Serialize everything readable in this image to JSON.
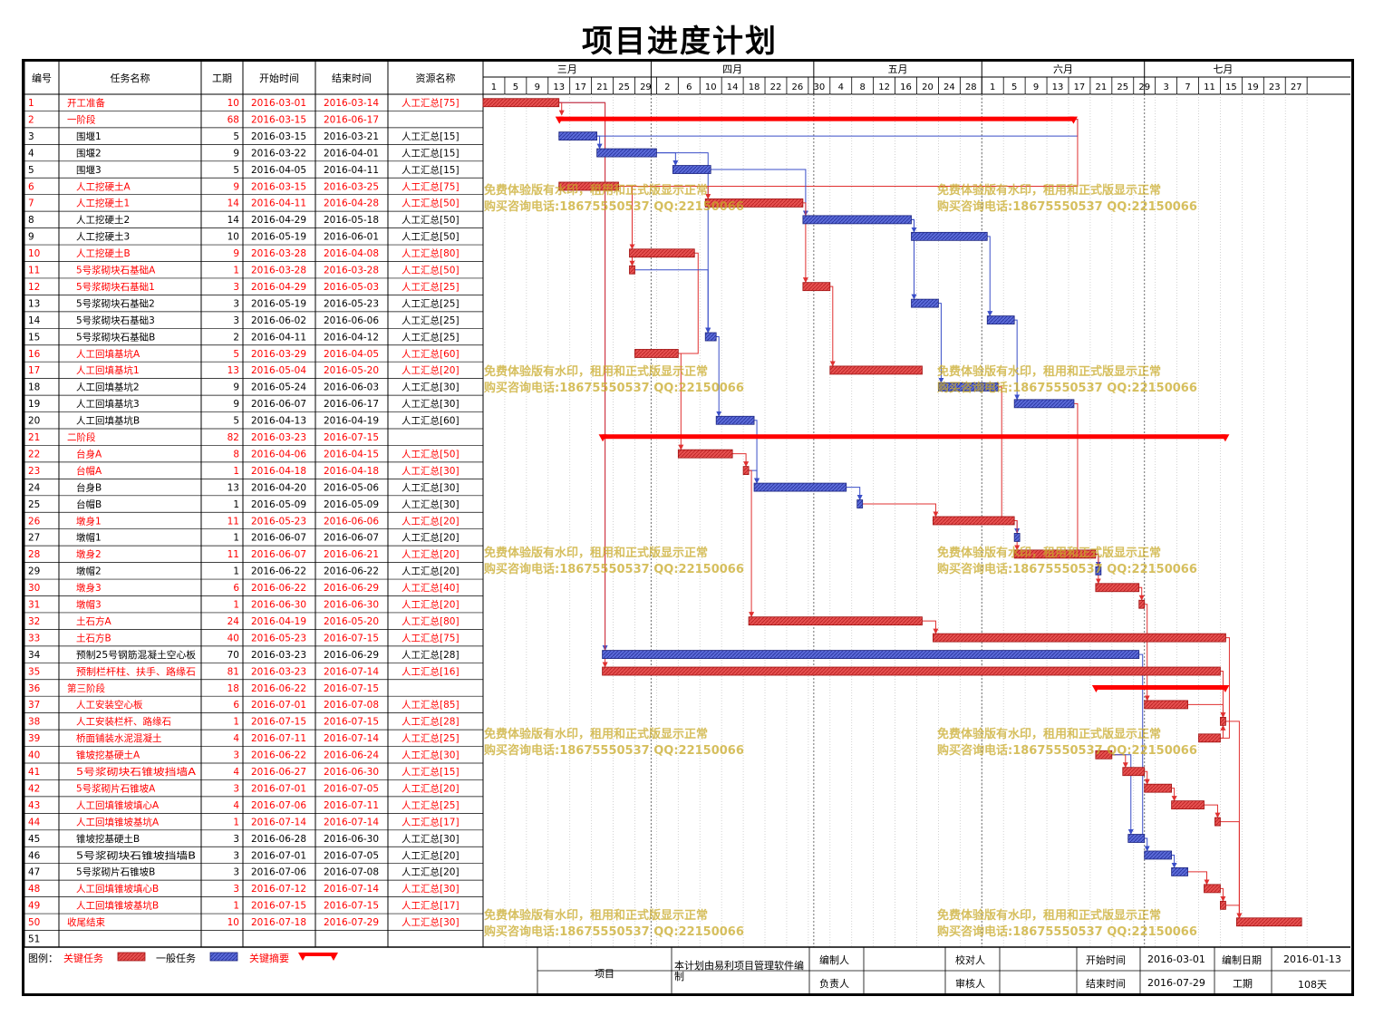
{
  "title": "项目进度计划",
  "headers": [
    "编号",
    "任务名称",
    "工期",
    "开始时间",
    "结束时间",
    "资源名称"
  ],
  "months": [
    "三月",
    "四月",
    "五月",
    "六月",
    "七月"
  ],
  "day_ticks": [
    "1",
    "5",
    "9",
    "13",
    "17",
    "21",
    "25",
    "29",
    "2",
    "6",
    "10",
    "14",
    "18",
    "22",
    "26",
    "30",
    "4",
    "8",
    "12",
    "16",
    "20",
    "24",
    "28",
    "1",
    "5",
    "9",
    "13",
    "17",
    "21",
    "25",
    "29",
    "3",
    "7",
    "11",
    "15",
    "19",
    "23",
    "27"
  ],
  "colors": {
    "critical": "#e03030",
    "normal": "#3a4ec8",
    "summary": "#ff0000",
    "critical_text": "#ff0000",
    "normal_text": "#000000"
  },
  "watermark": [
    "免费体验版有水印，租用和正式版显示正常",
    "购买咨询电话:18675550537 QQ:22150066"
  ],
  "legend": {
    "label": "图例：",
    "critical": "关键任务",
    "normal": "一般任务",
    "summary": "关键摘要"
  },
  "footer": {
    "project_label": "项目",
    "software_note": "本计划由易利项目管理软件编制",
    "editor_label": "编制人",
    "checker_label": "校对人",
    "start_label": "开始时间",
    "start_value": "2016-03-01",
    "date_label": "编制日期",
    "date_value": "2016-01-13",
    "owner_label": "负责人",
    "reviewer_label": "审核人",
    "end_label": "结束时间",
    "end_value": "2016-07-29",
    "duration_label": "工期",
    "duration_value": "108天"
  },
  "chart_data": {
    "type": "gantt",
    "title": "项目进度计划",
    "x_range": [
      "2016-03-01",
      "2016-07-29"
    ],
    "tasks": [
      {
        "id": "1",
        "name": "开工准备",
        "level": 0,
        "dur": "10",
        "start": "2016-03-01",
        "end": "2016-03-14",
        "res": "人工汇总[75]",
        "kind": "critical"
      },
      {
        "id": "2",
        "name": "一阶段",
        "level": 0,
        "dur": "68",
        "start": "2016-03-15",
        "end": "2016-06-17",
        "res": "",
        "kind": "summary"
      },
      {
        "id": "3",
        "name": "围堰1",
        "level": 1,
        "dur": "5",
        "start": "2016-03-15",
        "end": "2016-03-21",
        "res": "人工汇总[15]",
        "kind": "normal"
      },
      {
        "id": "4",
        "name": "围堰2",
        "level": 1,
        "dur": "9",
        "start": "2016-03-22",
        "end": "2016-04-01",
        "res": "人工汇总[15]",
        "kind": "normal"
      },
      {
        "id": "5",
        "name": "围堰3",
        "level": 1,
        "dur": "5",
        "start": "2016-04-05",
        "end": "2016-04-11",
        "res": "人工汇总[15]",
        "kind": "normal"
      },
      {
        "id": "6",
        "name": "人工挖硬土A",
        "level": 1,
        "dur": "9",
        "start": "2016-03-15",
        "end": "2016-03-25",
        "res": "人工汇总[75]",
        "kind": "critical"
      },
      {
        "id": "7",
        "name": "人工挖硬土1",
        "level": 1,
        "dur": "14",
        "start": "2016-04-11",
        "end": "2016-04-28",
        "res": "人工汇总[50]",
        "kind": "critical"
      },
      {
        "id": "8",
        "name": "人工挖硬土2",
        "level": 1,
        "dur": "14",
        "start": "2016-04-29",
        "end": "2016-05-18",
        "res": "人工汇总[50]",
        "kind": "normal"
      },
      {
        "id": "9",
        "name": "人工挖硬土3",
        "level": 1,
        "dur": "10",
        "start": "2016-05-19",
        "end": "2016-06-01",
        "res": "人工汇总[50]",
        "kind": "normal"
      },
      {
        "id": "10",
        "name": "人工挖硬土B",
        "level": 1,
        "dur": "9",
        "start": "2016-03-28",
        "end": "2016-04-08",
        "res": "人工汇总[80]",
        "kind": "critical"
      },
      {
        "id": "11",
        "name": "5号浆砌块石基础A",
        "level": 1,
        "dur": "1",
        "start": "2016-03-28",
        "end": "2016-03-28",
        "res": "人工汇总[50]",
        "kind": "critical"
      },
      {
        "id": "12",
        "name": "5号浆砌块石基础1",
        "level": 1,
        "dur": "3",
        "start": "2016-04-29",
        "end": "2016-05-03",
        "res": "人工汇总[25]",
        "kind": "critical"
      },
      {
        "id": "13",
        "name": "5号浆砌块石基础2",
        "level": 1,
        "dur": "3",
        "start": "2016-05-19",
        "end": "2016-05-23",
        "res": "人工汇总[25]",
        "kind": "normal"
      },
      {
        "id": "14",
        "name": "5号浆砌块石基础3",
        "level": 1,
        "dur": "3",
        "start": "2016-06-02",
        "end": "2016-06-06",
        "res": "人工汇总[25]",
        "kind": "normal"
      },
      {
        "id": "15",
        "name": "5号浆砌块石基础B",
        "level": 1,
        "dur": "2",
        "start": "2016-04-11",
        "end": "2016-04-12",
        "res": "人工汇总[25]",
        "kind": "normal"
      },
      {
        "id": "16",
        "name": "人工回填基坑A",
        "level": 1,
        "dur": "5",
        "start": "2016-03-29",
        "end": "2016-04-05",
        "res": "人工汇总[60]",
        "kind": "critical"
      },
      {
        "id": "17",
        "name": "人工回填基坑1",
        "level": 1,
        "dur": "13",
        "start": "2016-05-04",
        "end": "2016-05-20",
        "res": "人工汇总[20]",
        "kind": "critical"
      },
      {
        "id": "18",
        "name": "人工回填基坑2",
        "level": 1,
        "dur": "9",
        "start": "2016-05-24",
        "end": "2016-06-03",
        "res": "人工汇总[30]",
        "kind": "normal"
      },
      {
        "id": "19",
        "name": "人工回填基坑3",
        "level": 1,
        "dur": "9",
        "start": "2016-06-07",
        "end": "2016-06-17",
        "res": "人工汇总[30]",
        "kind": "normal"
      },
      {
        "id": "20",
        "name": "人工回填基坑B",
        "level": 1,
        "dur": "5",
        "start": "2016-04-13",
        "end": "2016-04-19",
        "res": "人工汇总[60]",
        "kind": "normal"
      },
      {
        "id": "21",
        "name": "二阶段",
        "level": 0,
        "dur": "82",
        "start": "2016-03-23",
        "end": "2016-07-15",
        "res": "",
        "kind": "summary"
      },
      {
        "id": "22",
        "name": "台身A",
        "level": 1,
        "dur": "8",
        "start": "2016-04-06",
        "end": "2016-04-15",
        "res": "人工汇总[50]",
        "kind": "critical"
      },
      {
        "id": "23",
        "name": "台帽A",
        "level": 1,
        "dur": "1",
        "start": "2016-04-18",
        "end": "2016-04-18",
        "res": "人工汇总[30]",
        "kind": "critical"
      },
      {
        "id": "24",
        "name": "台身B",
        "level": 1,
        "dur": "13",
        "start": "2016-04-20",
        "end": "2016-05-06",
        "res": "人工汇总[30]",
        "kind": "normal"
      },
      {
        "id": "25",
        "name": "台帽B",
        "level": 1,
        "dur": "1",
        "start": "2016-05-09",
        "end": "2016-05-09",
        "res": "人工汇总[30]",
        "kind": "normal"
      },
      {
        "id": "26",
        "name": "墩身1",
        "level": 1,
        "dur": "11",
        "start": "2016-05-23",
        "end": "2016-06-06",
        "res": "人工汇总[20]",
        "kind": "critical"
      },
      {
        "id": "27",
        "name": "墩帽1",
        "level": 1,
        "dur": "1",
        "start": "2016-06-07",
        "end": "2016-06-07",
        "res": "人工汇总[20]",
        "kind": "normal"
      },
      {
        "id": "28",
        "name": "墩身2",
        "level": 1,
        "dur": "11",
        "start": "2016-06-07",
        "end": "2016-06-21",
        "res": "人工汇总[20]",
        "kind": "critical"
      },
      {
        "id": "29",
        "name": "墩帽2",
        "level": 1,
        "dur": "1",
        "start": "2016-06-22",
        "end": "2016-06-22",
        "res": "人工汇总[20]",
        "kind": "normal"
      },
      {
        "id": "30",
        "name": "墩身3",
        "level": 1,
        "dur": "6",
        "start": "2016-06-22",
        "end": "2016-06-29",
        "res": "人工汇总[40]",
        "kind": "critical"
      },
      {
        "id": "31",
        "name": "墩帽3",
        "level": 1,
        "dur": "1",
        "start": "2016-06-30",
        "end": "2016-06-30",
        "res": "人工汇总[20]",
        "kind": "critical"
      },
      {
        "id": "32",
        "name": "土石方A",
        "level": 1,
        "dur": "24",
        "start": "2016-04-19",
        "end": "2016-05-20",
        "res": "人工汇总[80]",
        "kind": "critical"
      },
      {
        "id": "33",
        "name": "土石方B",
        "level": 1,
        "dur": "40",
        "start": "2016-05-23",
        "end": "2016-07-15",
        "res": "人工汇总[75]",
        "kind": "critical"
      },
      {
        "id": "34",
        "name": "预制25号钢筋混凝土空心板",
        "level": 1,
        "dur": "70",
        "start": "2016-03-23",
        "end": "2016-06-29",
        "res": "人工汇总[28]",
        "kind": "normal"
      },
      {
        "id": "35",
        "name": "预制栏杆柱、扶手、路缘石",
        "level": 1,
        "dur": "81",
        "start": "2016-03-23",
        "end": "2016-07-14",
        "res": "人工汇总[16]",
        "kind": "critical"
      },
      {
        "id": "36",
        "name": "第三阶段",
        "level": 0,
        "dur": "18",
        "start": "2016-06-22",
        "end": "2016-07-15",
        "res": "",
        "kind": "summary"
      },
      {
        "id": "37",
        "name": "人工安装空心板",
        "level": 1,
        "dur": "6",
        "start": "2016-07-01",
        "end": "2016-07-08",
        "res": "人工汇总[85]",
        "kind": "critical"
      },
      {
        "id": "38",
        "name": "人工安装栏杆、路缘石",
        "level": 1,
        "dur": "1",
        "start": "2016-07-15",
        "end": "2016-07-15",
        "res": "人工汇总[28]",
        "kind": "critical"
      },
      {
        "id": "39",
        "name": "桥面铺装水泥混凝土",
        "level": 1,
        "dur": "4",
        "start": "2016-07-11",
        "end": "2016-07-14",
        "res": "人工汇总[25]",
        "kind": "critical"
      },
      {
        "id": "40",
        "name": "锥坡挖基硬土A",
        "level": 1,
        "dur": "3",
        "start": "2016-06-22",
        "end": "2016-06-24",
        "res": "人工汇总[30]",
        "kind": "critical"
      },
      {
        "id": "41",
        "name": "5号浆砌块石锥坡挡墙A",
        "level": 1,
        "dur": "4",
        "start": "2016-06-27",
        "end": "2016-06-30",
        "res": "人工汇总[15]",
        "kind": "critical"
      },
      {
        "id": "42",
        "name": "5号浆砌片石锥坡A",
        "level": 1,
        "dur": "3",
        "start": "2016-07-01",
        "end": "2016-07-05",
        "res": "人工汇总[20]",
        "kind": "critical"
      },
      {
        "id": "43",
        "name": "人工回填锥坡填心A",
        "level": 1,
        "dur": "4",
        "start": "2016-07-06",
        "end": "2016-07-11",
        "res": "人工汇总[25]",
        "kind": "critical"
      },
      {
        "id": "44",
        "name": "人工回填锥坡基坑A",
        "level": 1,
        "dur": "1",
        "start": "2016-07-14",
        "end": "2016-07-14",
        "res": "人工汇总[17]",
        "kind": "critical"
      },
      {
        "id": "45",
        "name": "锥坡挖基硬土B",
        "level": 1,
        "dur": "3",
        "start": "2016-06-28",
        "end": "2016-06-30",
        "res": "人工汇总[30]",
        "kind": "normal"
      },
      {
        "id": "46",
        "name": "5号浆砌块石锥坡挡墙B",
        "level": 1,
        "dur": "3",
        "start": "2016-07-01",
        "end": "2016-07-05",
        "res": "人工汇总[20]",
        "kind": "normal"
      },
      {
        "id": "47",
        "name": "5号浆砌片石锥坡B",
        "level": 1,
        "dur": "3",
        "start": "2016-07-06",
        "end": "2016-07-08",
        "res": "人工汇总[20]",
        "kind": "normal"
      },
      {
        "id": "48",
        "name": "人工回填锥坡填心B",
        "level": 1,
        "dur": "3",
        "start": "2016-07-12",
        "end": "2016-07-14",
        "res": "人工汇总[30]",
        "kind": "critical"
      },
      {
        "id": "49",
        "name": "人工回填锥坡基坑B",
        "level": 1,
        "dur": "1",
        "start": "2016-07-15",
        "end": "2016-07-15",
        "res": "人工汇总[17]",
        "kind": "critical"
      },
      {
        "id": "50",
        "name": "收尾结束",
        "level": 0,
        "dur": "10",
        "start": "2016-07-18",
        "end": "2016-07-29",
        "res": "人工汇总[30]",
        "kind": "critical"
      },
      {
        "id": "51",
        "name": "",
        "level": 0,
        "dur": "",
        "start": "",
        "end": "",
        "res": "",
        "kind": "none"
      }
    ],
    "links": [
      [
        1,
        2
      ],
      [
        1,
        34
      ],
      [
        1,
        35
      ],
      [
        2,
        3
      ],
      [
        2,
        6
      ],
      [
        3,
        4
      ],
      [
        4,
        5
      ],
      [
        4,
        15
      ],
      [
        5,
        8
      ],
      [
        6,
        10
      ],
      [
        6,
        11
      ],
      [
        6,
        7
      ],
      [
        10,
        16
      ],
      [
        11,
        15
      ],
      [
        7,
        12
      ],
      [
        12,
        17
      ],
      [
        8,
        9
      ],
      [
        8,
        13
      ],
      [
        9,
        14
      ],
      [
        13,
        18
      ],
      [
        14,
        19
      ],
      [
        15,
        20
      ],
      [
        20,
        24
      ],
      [
        16,
        22
      ],
      [
        22,
        23
      ],
      [
        23,
        24
      ],
      [
        24,
        25
      ],
      [
        25,
        26
      ],
      [
        26,
        27
      ],
      [
        26,
        28
      ],
      [
        28,
        29
      ],
      [
        28,
        30
      ],
      [
        30,
        31
      ],
      [
        18,
        26
      ],
      [
        19,
        28
      ],
      [
        23,
        32
      ],
      [
        32,
        33
      ],
      [
        31,
        37
      ],
      [
        37,
        38
      ],
      [
        39,
        38
      ],
      [
        33,
        39
      ],
      [
        35,
        38
      ],
      [
        40,
        41
      ],
      [
        41,
        42
      ],
      [
        42,
        43
      ],
      [
        43,
        44
      ],
      [
        40,
        45
      ],
      [
        45,
        46
      ],
      [
        46,
        47
      ],
      [
        47,
        48
      ],
      [
        48,
        49
      ],
      [
        34,
        45
      ],
      [
        44,
        50
      ],
      [
        49,
        50
      ],
      [
        38,
        50
      ]
    ]
  }
}
